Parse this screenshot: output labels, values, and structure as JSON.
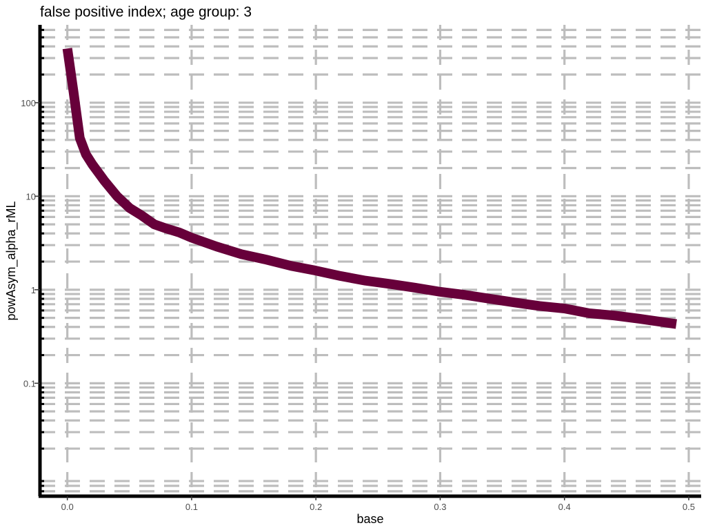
{
  "chart_data": {
    "type": "line",
    "title": "false positive index; age group: 3",
    "xlabel": "base",
    "ylabel": "powAsym_alpha_rML",
    "x_scale": "linear",
    "y_scale": "log10",
    "xlim": [
      -0.022,
      0.51
    ],
    "ylim": [
      0.0062,
      680
    ],
    "x_ticks": [
      0.0,
      0.1,
      0.2,
      0.3,
      0.4,
      0.5
    ],
    "x_tick_labels": [
      "0.0",
      "0.1",
      "0.2",
      "0.3",
      "0.4",
      "0.5"
    ],
    "y_ticks": [
      0.1,
      1,
      10,
      100
    ],
    "y_tick_labels": [
      "0.1",
      "1",
      "10",
      "100"
    ],
    "grid": true,
    "grid_style": "dashed",
    "legend": "none",
    "line_color": "#67003a",
    "grid_color": "#bdbdbd",
    "series": [
      {
        "x": [
          0.0,
          0.005,
          0.01,
          0.015,
          0.02,
          0.03,
          0.04,
          0.05,
          0.06,
          0.07,
          0.08,
          0.09,
          0.1,
          0.12,
          0.14,
          0.16,
          0.18,
          0.2,
          0.22,
          0.24,
          0.26,
          0.28,
          0.3,
          0.32,
          0.34,
          0.36,
          0.38,
          0.4,
          0.42,
          0.44,
          0.46,
          0.49
        ],
        "y": [
          380,
          130,
          42,
          28,
          22,
          14.5,
          10,
          7.5,
          6.2,
          5.0,
          4.5,
          4.1,
          3.6,
          2.9,
          2.4,
          2.1,
          1.8,
          1.6,
          1.4,
          1.25,
          1.15,
          1.05,
          0.95,
          0.88,
          0.8,
          0.73,
          0.67,
          0.63,
          0.56,
          0.53,
          0.49,
          0.43
        ]
      }
    ]
  }
}
